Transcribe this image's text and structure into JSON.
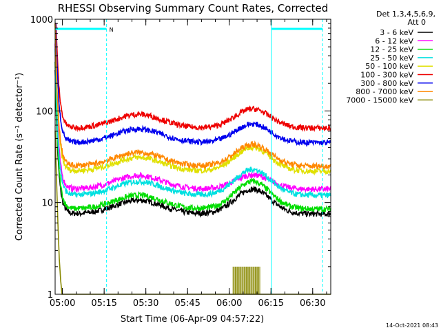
{
  "chart_data": {
    "type": "line",
    "title": "RHESSI Observing Summary Count Rates, Corrected",
    "ylabel": "Corrected Count Rate (s⁻¹ detector⁻¹)",
    "xlabel": "Start Time (06-Apr-09 04:57:22)",
    "footer": "14-Oct-2021 08:43",
    "y_scale": "log",
    "ylim": [
      1,
      1000
    ],
    "xlim": [
      "04:57:22",
      "06:36:30"
    ],
    "y_ticks": [
      {
        "value": 1,
        "label": "1"
      },
      {
        "value": 10,
        "label": "10"
      },
      {
        "value": 100,
        "label": "100"
      },
      {
        "value": 1000,
        "label": "1000"
      }
    ],
    "x_ticks": [
      {
        "label": "05:00",
        "minutes": 2.63
      },
      {
        "label": "05:15",
        "minutes": 17.63
      },
      {
        "label": "05:30",
        "minutes": 32.63
      },
      {
        "label": "05:45",
        "minutes": 47.63
      },
      {
        "label": "06:00",
        "minutes": 62.63
      },
      {
        "label": "06:15",
        "minutes": 77.63
      },
      {
        "label": "06:30",
        "minutes": 92.63
      }
    ],
    "legend": {
      "placement": "right",
      "header": [
        "Det 1,3,4,5,6,9,",
        "Att 0"
      ]
    },
    "attenuator_state": {
      "marker": "N"
    },
    "series": [
      {
        "name": "3 - 6 keV",
        "color": "#000000",
        "baseline": 7.5,
        "peak": 14
      },
      {
        "name": "6 - 12 keV",
        "color": "#ff00ff",
        "baseline": 14,
        "peak": 20
      },
      {
        "name": "12 - 25 keV",
        "color": "#00dd00",
        "baseline": 8.5,
        "peak": 17
      },
      {
        "name": "25 - 50 keV",
        "color": "#00e0e0",
        "baseline": 12,
        "peak": 23
      },
      {
        "name": "50 - 100 keV",
        "color": "#e0e000",
        "baseline": 22,
        "peak": 40
      },
      {
        "name": "100 - 300 keV",
        "color": "#ee0000",
        "baseline": 65,
        "peak": 105
      },
      {
        "name": "300 - 800 keV",
        "color": "#0000ee",
        "baseline": 45,
        "peak": 72
      },
      {
        "name": "800 - 7000 keV",
        "color": "#ff8800",
        "baseline": 25,
        "peak": 43
      },
      {
        "name": "7000 - 15000 keV",
        "color": "#888800",
        "baseline": 1,
        "peak": 2
      }
    ],
    "vertical_markers": [
      {
        "minutes": 0,
        "style": "solid",
        "color": "#00ffff"
      },
      {
        "minutes": 18.5,
        "style": "dashed",
        "color": "#00ffff"
      },
      {
        "minutes": 77.8,
        "style": "solid",
        "color": "#00ffff"
      },
      {
        "minutes": 96.2,
        "style": "dashed",
        "color": "#00ffff"
      }
    ]
  }
}
